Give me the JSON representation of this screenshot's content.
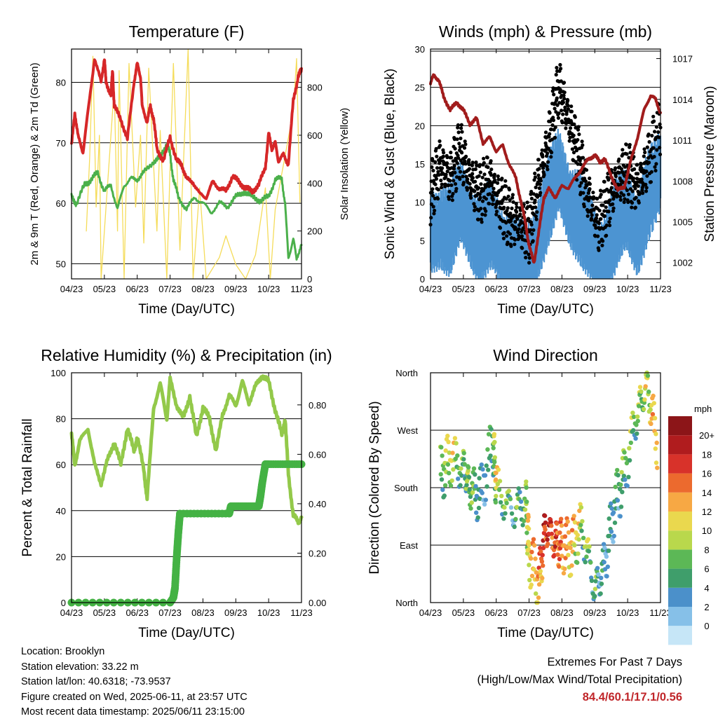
{
  "x_ticks": [
    "04/23",
    "05/23",
    "06/23",
    "07/23",
    "08/23",
    "09/23",
    "10/23",
    "11/23"
  ],
  "colors": {
    "temp_red": "#d62728",
    "temp_orange": "#e8852a",
    "dewpoint_green": "#4bb04b",
    "solar_yellow": "#f5dc5a",
    "wind_blue": "#4c94d2",
    "gust_black": "#000000",
    "pressure_maroon": "#a11c1c",
    "rh_lightgreen": "#93c94a",
    "precip_green": "#44b244"
  },
  "panels": {
    "temperature": {
      "title": "Temperature (F)",
      "ylabel": "2m & 9m T (Red, Orange) & 2m Td (Green)",
      "y2label": "Solar Insolation (Yellow)",
      "xlabel": "Time (Day/UTC)",
      "yticks": [
        "50",
        "60",
        "70",
        "80"
      ],
      "y2ticks": [
        "0",
        "200",
        "400",
        "600",
        "800"
      ]
    },
    "winds": {
      "title": "Winds (mph) & Pressure (mb)",
      "ylabel": "Sonic Wind & Gust (Blue, Black)",
      "y2label": "Station Pressure (Maroon)",
      "xlabel": "Time (Day/UTC)",
      "yticks": [
        "0",
        "5",
        "10",
        "15",
        "20",
        "25",
        "30"
      ],
      "y2ticks": [
        "1002",
        "1005",
        "1008",
        "1011",
        "1014",
        "1017"
      ]
    },
    "humidity": {
      "title": "Relative Humidity (%) & Precipitation (in)",
      "ylabel": "Percent & Total Rainfall",
      "xlabel": "Time (Day/UTC)",
      "yticks": [
        "0",
        "20",
        "40",
        "60",
        "80",
        "100"
      ],
      "y2ticks": [
        "0.00",
        "0.20",
        "0.40",
        "0.60",
        "0.80"
      ]
    },
    "direction": {
      "title": "Wind Direction",
      "ylabel": "Direction (Colored By Speed)",
      "xlabel": "Time (Day/UTC)",
      "yticks": [
        "North",
        "East",
        "South",
        "West",
        "North"
      ],
      "legend_title": "mph",
      "legend_labels": [
        "0",
        "2",
        "4",
        "6",
        "8",
        "10",
        "12",
        "14",
        "16",
        "18",
        "20+"
      ],
      "legend_colors": [
        "#c6e6f7",
        "#86c0e8",
        "#4b90ca",
        "#3f9e6b",
        "#5cb856",
        "#b9d84c",
        "#ead84e",
        "#f7a844",
        "#ec6a2e",
        "#d8322a",
        "#b01c1e",
        "#8c1518"
      ]
    }
  },
  "info": {
    "location": "Location: Brooklyn",
    "elevation": "Station elevation: 33.22 m",
    "latlon": "Station lat/lon: 40.6318; -73.9537",
    "created": "Figure created on Wed, 2025-06-11, at 23:57 UTC",
    "recent": "Most recent data timestamp: 2025/06/11 23:15:00"
  },
  "extremes": {
    "line1": "Extremes For Past 7 Days",
    "line2": "(High/Low/Max Wind/Total Precipitation)",
    "values": "84.4/60.1/17.1/0.56"
  },
  "chart_data": [
    {
      "type": "line",
      "title": "Temperature (F)",
      "xlabel": "Time (Day/UTC)",
      "ylabel": "2m & 9m T (Red, Orange) & 2m Td (Green)",
      "y2label": "Solar Insolation (Yellow)",
      "x_categories": [
        "04/23",
        "05/23",
        "06/23",
        "07/23",
        "08/23",
        "09/23",
        "10/23",
        "11/23"
      ],
      "ylim": [
        47.5,
        85.5
      ],
      "y2lim": [
        0,
        960
      ],
      "series": [
        {
          "name": "2m & 9m T",
          "axis": "left",
          "x": [
            0,
            0.1,
            0.2,
            0.35,
            0.5,
            0.7,
            0.9,
            1.0,
            1.05,
            1.2,
            1.25,
            1.3,
            1.5,
            1.7,
            1.9,
            2.0,
            2.1,
            2.15,
            2.3,
            2.4,
            2.5,
            2.6,
            2.8,
            3.0,
            3.2,
            3.35,
            3.5,
            3.7,
            3.9,
            4.1,
            4.3,
            4.5,
            4.7,
            4.9,
            5.1,
            5.3,
            5.5,
            5.7,
            5.9,
            6.0,
            6.1,
            6.2,
            6.3,
            6.45,
            6.6,
            6.75,
            6.9,
            7.0
          ],
          "y": [
            69.5,
            75,
            71,
            68.5,
            75,
            84,
            80,
            84,
            80,
            78,
            82,
            76,
            74,
            70.5,
            80,
            83,
            81,
            76,
            73.5,
            76,
            74,
            69,
            67,
            71,
            67,
            66.5,
            64,
            63.5,
            61.5,
            61,
            63.5,
            62.5,
            62,
            64.5,
            63.5,
            62.5,
            62,
            63,
            66,
            71.5,
            69,
            70,
            67,
            68,
            66.5,
            77,
            81,
            82
          ]
        },
        {
          "name": "2m Td",
          "axis": "left",
          "x": [
            0,
            0.15,
            0.4,
            0.6,
            0.8,
            1.0,
            1.2,
            1.4,
            1.6,
            1.8,
            2.0,
            2.2,
            2.5,
            2.7,
            2.9,
            3.0,
            3.1,
            3.25,
            3.5,
            3.75,
            4.0,
            4.25,
            4.5,
            4.75,
            5.0,
            5.25,
            5.5,
            5.75,
            6.0,
            6.2,
            6.4,
            6.5,
            6.6,
            6.75,
            6.85,
            7.0
          ],
          "y": [
            61,
            60,
            63,
            64,
            65,
            62,
            63,
            59,
            63,
            64,
            64,
            65,
            67,
            67.5,
            70,
            68,
            64,
            61,
            59,
            61,
            60,
            58.5,
            60,
            59.5,
            61,
            62,
            61,
            60.5,
            61,
            64,
            64,
            60,
            51,
            54,
            51,
            53
          ]
        },
        {
          "name": "Solar Insolation",
          "axis": "right",
          "x": [
            0.45,
            0.55,
            0.65,
            0.75,
            0.85,
            0.9,
            1.3,
            1.4,
            1.45,
            1.6,
            1.75,
            1.95,
            2.1,
            2.2,
            2.35,
            2.6,
            2.7,
            2.9,
            3.0,
            3.1,
            3.3,
            3.55,
            3.7,
            3.9,
            4.1,
            4.5,
            4.7,
            5.0,
            5.3,
            5.6,
            5.9,
            6.05,
            6.2,
            6.75,
            6.85,
            6.95
          ],
          "y": [
            200,
            500,
            930,
            300,
            600,
            0,
            800,
            200,
            870,
            0,
            900,
            300,
            600,
            150,
            880,
            200,
            620,
            0,
            470,
            900,
            120,
            960,
            0,
            380,
            0,
            90,
            180,
            60,
            0,
            100,
            380,
            0,
            290,
            700,
            920,
            320
          ]
        }
      ]
    },
    {
      "type": "line",
      "title": "Winds (mph) & Pressure (mb)",
      "xlabel": "Time (Day/UTC)",
      "ylabel": "Sonic Wind & Gust (Blue, Black)",
      "y2label": "Station Pressure (Maroon)",
      "x_categories": [
        "04/23",
        "05/23",
        "06/23",
        "07/23",
        "08/23",
        "09/23",
        "10/23",
        "11/23"
      ],
      "ylim": [
        0,
        30
      ],
      "y2lim": [
        1000.8,
        1017.7
      ],
      "series": [
        {
          "name": "Sonic Wind",
          "axis": "left",
          "x": [
            0,
            0.3,
            0.6,
            0.9,
            1.2,
            1.5,
            1.8,
            2.1,
            2.4,
            2.7,
            3.0,
            3.3,
            3.6,
            3.9,
            4.2,
            4.5,
            4.8,
            5.1,
            5.4,
            5.7,
            6.0,
            6.3,
            6.6,
            7.0
          ],
          "y": [
            7,
            9,
            8,
            11,
            9,
            7,
            8,
            6,
            5,
            3,
            3,
            8,
            12,
            15,
            12,
            10,
            7,
            4,
            6,
            9,
            10,
            8,
            12,
            15
          ]
        },
        {
          "name": "Gust",
          "axis": "left",
          "x": [
            0,
            0.3,
            0.6,
            0.9,
            1.2,
            1.5,
            1.8,
            2.1,
            2.4,
            2.7,
            3.0,
            3.3,
            3.6,
            3.9,
            4.2,
            4.5,
            4.8,
            5.1,
            5.4,
            5.7,
            6.0,
            6.3,
            6.6,
            7.0
          ],
          "y": [
            11,
            15,
            13,
            17,
            13,
            11,
            13,
            10,
            8,
            7,
            6,
            13,
            18,
            25,
            21,
            16,
            11,
            7,
            10,
            13,
            14,
            12,
            15,
            20
          ]
        },
        {
          "name": "Station Pressure",
          "axis": "right",
          "x": [
            0,
            0.1,
            0.25,
            0.4,
            0.6,
            0.8,
            1.0,
            1.2,
            1.4,
            1.6,
            1.8,
            2.0,
            2.2,
            2.4,
            2.6,
            2.75,
            2.9,
            3.0,
            3.15,
            3.3,
            3.45,
            3.6,
            3.8,
            4.0,
            4.2,
            4.4,
            4.6,
            4.8,
            5.0,
            5.15,
            5.3,
            5.5,
            5.7,
            5.9,
            6.1,
            6.3,
            6.5,
            6.7,
            6.85,
            7.0
          ],
          "y": [
            1015.2,
            1015.8,
            1015.4,
            1014.2,
            1013.2,
            1013.8,
            1013.2,
            1012.2,
            1012.6,
            1010.8,
            1011.2,
            1010.2,
            1010.6,
            1009.2,
            1008.2,
            1006.5,
            1004.8,
            1003.2,
            1002.0,
            1004.3,
            1006.8,
            1007.4,
            1006.8,
            1007.6,
            1007.5,
            1008.2,
            1008.9,
            1009.6,
            1009.9,
            1009.4,
            1009.6,
            1008.4,
            1007.3,
            1007.6,
            1009.5,
            1011.2,
            1013.2,
            1014.3,
            1014.0,
            1013.0
          ]
        }
      ]
    },
    {
      "type": "line",
      "title": "Relative Humidity (%) & Precipitation (in)",
      "xlabel": "Time (Day/UTC)",
      "ylabel": "Percent & Total Rainfall",
      "x_categories": [
        "04/23",
        "05/23",
        "06/23",
        "07/23",
        "08/23",
        "09/23",
        "10/23",
        "11/23"
      ],
      "ylim": [
        0,
        100
      ],
      "y2lim": [
        0,
        0.93
      ],
      "series": [
        {
          "name": "Relative Humidity",
          "axis": "left",
          "x": [
            0,
            0.1,
            0.25,
            0.5,
            0.7,
            0.9,
            1.1,
            1.3,
            1.5,
            1.7,
            1.9,
            2.0,
            2.2,
            2.3,
            2.5,
            2.7,
            2.9,
            3.0,
            3.2,
            3.4,
            3.6,
            3.8,
            4.0,
            4.2,
            4.4,
            4.6,
            4.8,
            5.0,
            5.2,
            5.4,
            5.6,
            5.8,
            6.0,
            6.2,
            6.4,
            6.5,
            6.6,
            6.75,
            6.9,
            7.0
          ],
          "y": [
            73,
            60,
            70,
            76,
            60,
            52,
            62,
            70,
            60,
            76,
            66,
            72,
            58,
            45,
            85,
            95,
            80,
            97,
            86,
            80,
            90,
            72,
            85,
            80,
            66,
            82,
            90,
            86,
            96,
            87,
            94,
            99,
            96,
            84,
            73,
            80,
            56,
            38,
            35,
            37
          ]
        },
        {
          "name": "Total Rainfall",
          "axis": "right",
          "x": [
            0,
            3.0,
            3.1,
            3.15,
            3.2,
            3.25,
            3.3,
            4.8,
            4.85,
            5.7,
            5.75,
            5.8,
            5.9,
            6.0,
            7.0
          ],
          "y": [
            0,
            0,
            0.02,
            0.06,
            0.18,
            0.28,
            0.36,
            0.36,
            0.39,
            0.39,
            0.43,
            0.48,
            0.56,
            0.56,
            0.56
          ]
        }
      ]
    },
    {
      "type": "scatter",
      "title": "Wind Direction",
      "xlabel": "Time (Day/UTC)",
      "ylabel": "Direction (Colored By Speed)",
      "x_categories": [
        "04/23",
        "05/23",
        "06/23",
        "07/23",
        "08/23",
        "09/23",
        "10/23",
        "11/23"
      ],
      "y_categories": [
        "North",
        "East",
        "South",
        "West",
        "North"
      ],
      "series": [
        {
          "name": "Wind direction",
          "color_key": "speed (mph)",
          "x": [
            0.3,
            0.6,
            1.0,
            1.2,
            1.5,
            1.9,
            2.0,
            2.5,
            2.9,
            3.0,
            3.3,
            3.5,
            3.8,
            4.0,
            4.3,
            4.6,
            5.0,
            5.3,
            5.6,
            5.9,
            6.3,
            6.6,
            6.9
          ],
          "y_deg": [
            200,
            225,
            210,
            180,
            165,
            250,
            180,
            140,
            160,
            75,
            30,
            120,
            95,
            90,
            85,
            120,
            20,
            60,
            150,
            200,
            300,
            340,
            250
          ],
          "speed_mph": [
            6,
            10,
            5,
            8,
            3,
            6,
            10,
            4,
            7,
            12,
            13,
            18,
            16,
            14,
            12,
            8,
            5,
            3,
            4,
            6,
            7,
            9,
            14
          ]
        }
      ]
    }
  ]
}
